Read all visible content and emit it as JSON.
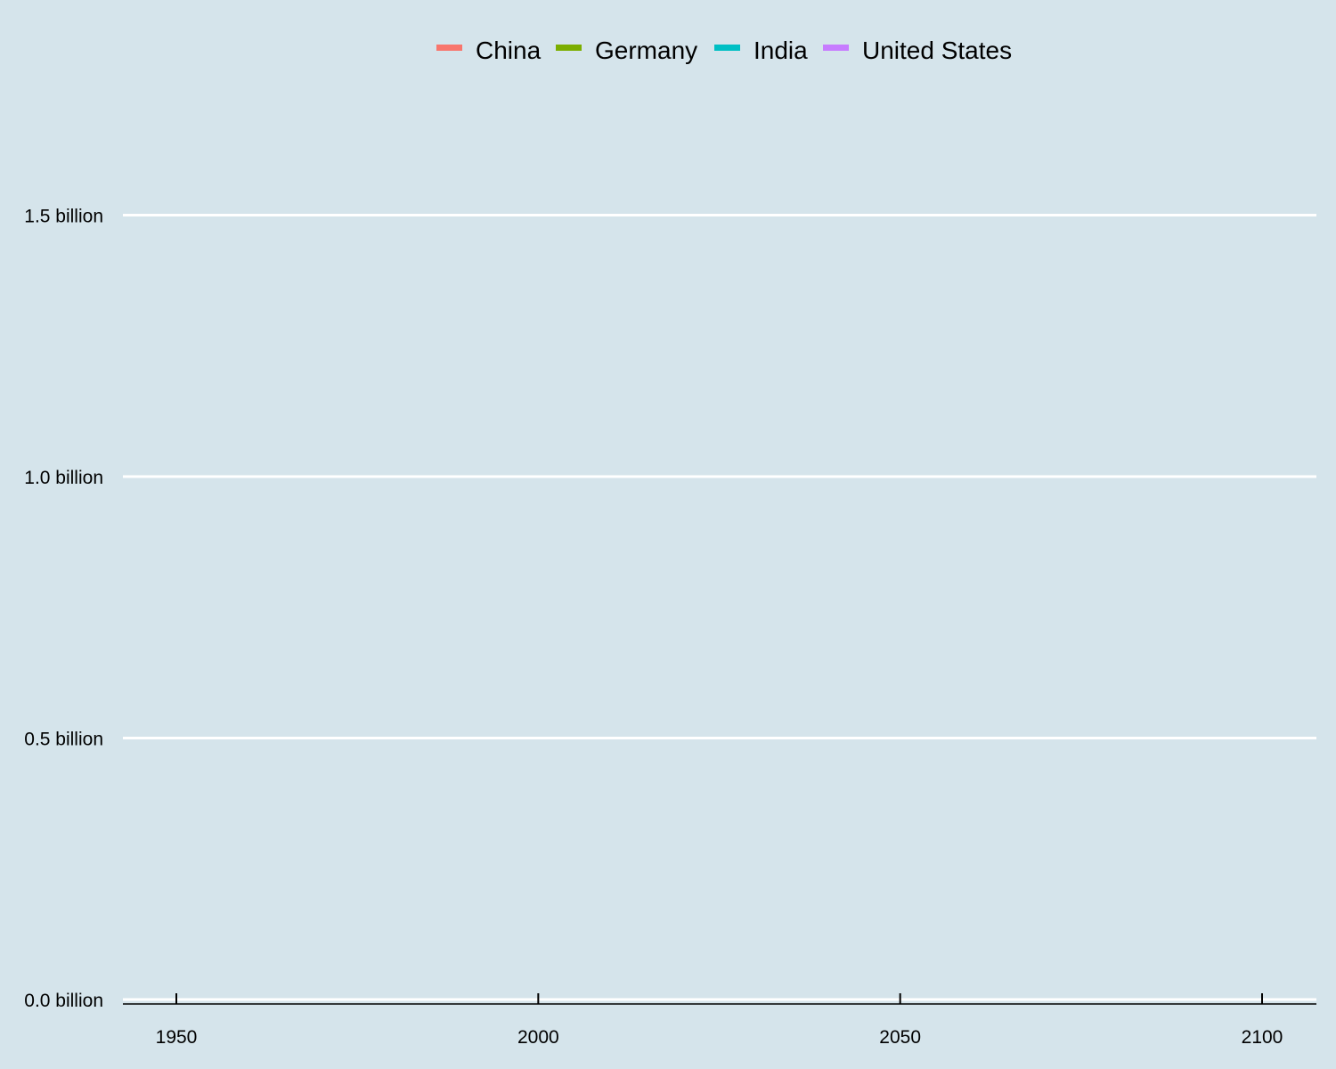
{
  "chart_data": {
    "type": "line",
    "title": "",
    "xlabel": "",
    "ylabel": "",
    "x_ticks": [
      {
        "value": 1950,
        "label": "1950"
      },
      {
        "value": 2000,
        "label": "2000"
      },
      {
        "value": 2050,
        "label": "2050"
      },
      {
        "value": 2100,
        "label": "2100"
      }
    ],
    "y_ticks": [
      {
        "value": 0.0,
        "label": "0.0 billion"
      },
      {
        "value": 0.5,
        "label": "0.5 billion"
      },
      {
        "value": 1.0,
        "label": "1.0 billion"
      },
      {
        "value": 1.5,
        "label": "1.5 billion"
      }
    ],
    "xlim": [
      1942.5,
      2107.5
    ],
    "ylim": [
      0,
      1.74
    ],
    "y_unit": "billion",
    "grid": "horizontal",
    "legend_position": "top",
    "background_color": "#d5e4eb",
    "series": [
      {
        "name": "China",
        "color": "#f8766d",
        "x": [],
        "y": []
      },
      {
        "name": "Germany",
        "color": "#7cae00",
        "x": [],
        "y": []
      },
      {
        "name": "India",
        "color": "#00bfc4",
        "x": [],
        "y": []
      },
      {
        "name": "United States",
        "color": "#c77cff",
        "x": [],
        "y": []
      }
    ]
  }
}
